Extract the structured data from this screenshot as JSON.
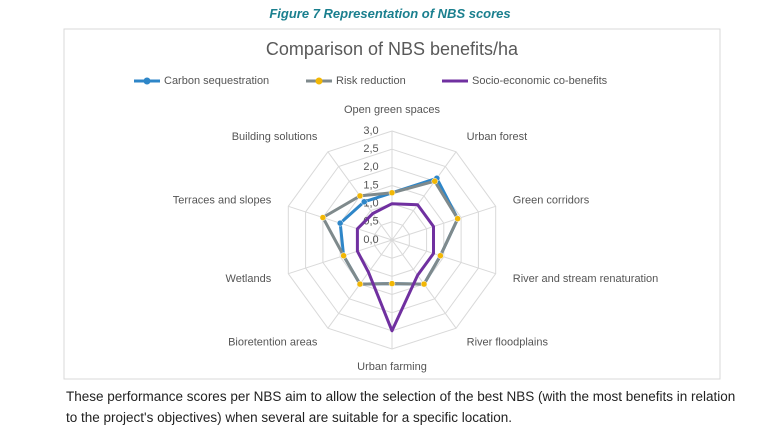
{
  "caption": "Figure 7 Representation of NBS scores",
  "chart_data": {
    "type": "radar",
    "title": "Comparison of NBS benefits/ha",
    "categories": [
      "Open green spaces",
      "Urban forest",
      "Green corridors",
      "River and stream renaturation",
      "River floodplains",
      "Urban farming",
      "Bioretention areas",
      "Wetlands",
      "Terraces and slopes",
      "Building solutions"
    ],
    "series": [
      {
        "name": "Carbon sequestration",
        "color": "#2e86c8",
        "marker_color": "#2e86c8",
        "values": [
          1.3,
          2.1,
          1.9,
          1.4,
          1.5,
          1.2,
          1.5,
          1.4,
          1.5,
          1.3
        ]
      },
      {
        "name": "Risk reduction",
        "color": "#7f8a8c",
        "marker_color": "#f2b705",
        "values": [
          1.3,
          2.0,
          1.9,
          1.4,
          1.5,
          1.2,
          1.5,
          1.4,
          2.0,
          1.5
        ]
      },
      {
        "name": "Socio-economic co-benefits",
        "color": "#7030a0",
        "values": [
          1.0,
          1.2,
          1.2,
          1.2,
          1.2,
          2.5,
          1.1,
          1.0,
          1.0,
          0.9
        ]
      }
    ],
    "ylim": [
      0,
      3
    ],
    "yticks": [
      {
        "value": 0,
        "label": "0,0"
      },
      {
        "value": 0.5,
        "label": "0,5"
      },
      {
        "value": 1,
        "label": "1,0"
      },
      {
        "value": 1.5,
        "label": "1,5"
      },
      {
        "value": 2,
        "label": "2,0"
      },
      {
        "value": 2.5,
        "label": "2,5"
      },
      {
        "value": 3,
        "label": "3,0"
      }
    ],
    "grid": true,
    "legend": "top"
  },
  "paragraph": "These performance scores per NBS aim to allow the selection of the best NBS (with the most benefits in relation to the project's objectives) when several are suitable for a specific location."
}
